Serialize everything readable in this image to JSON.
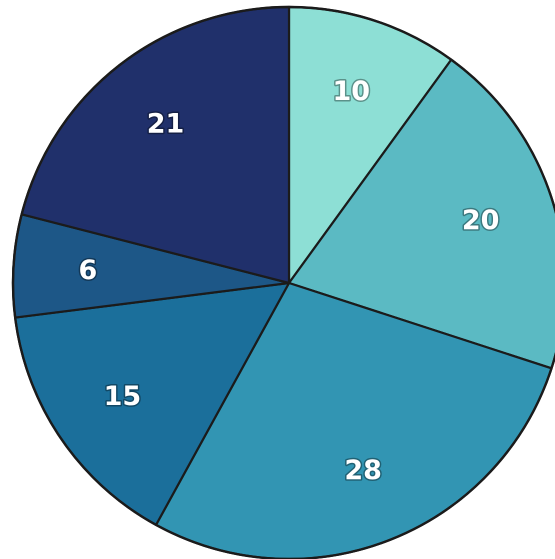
{
  "chart_data": {
    "type": "pie",
    "title": "",
    "legend": "none",
    "start_angle": "top (12 o'clock), clockwise",
    "series": [
      {
        "values": [
          10,
          20,
          28,
          15,
          6,
          21
        ],
        "colors": [
          "#8ddfd5",
          "#5bbac3",
          "#3295b3",
          "#1b6f9b",
          "#1d5787",
          "#20306b"
        ],
        "data_labels": [
          "10",
          "20",
          "28",
          "15",
          "6",
          "21"
        ]
      }
    ]
  }
}
